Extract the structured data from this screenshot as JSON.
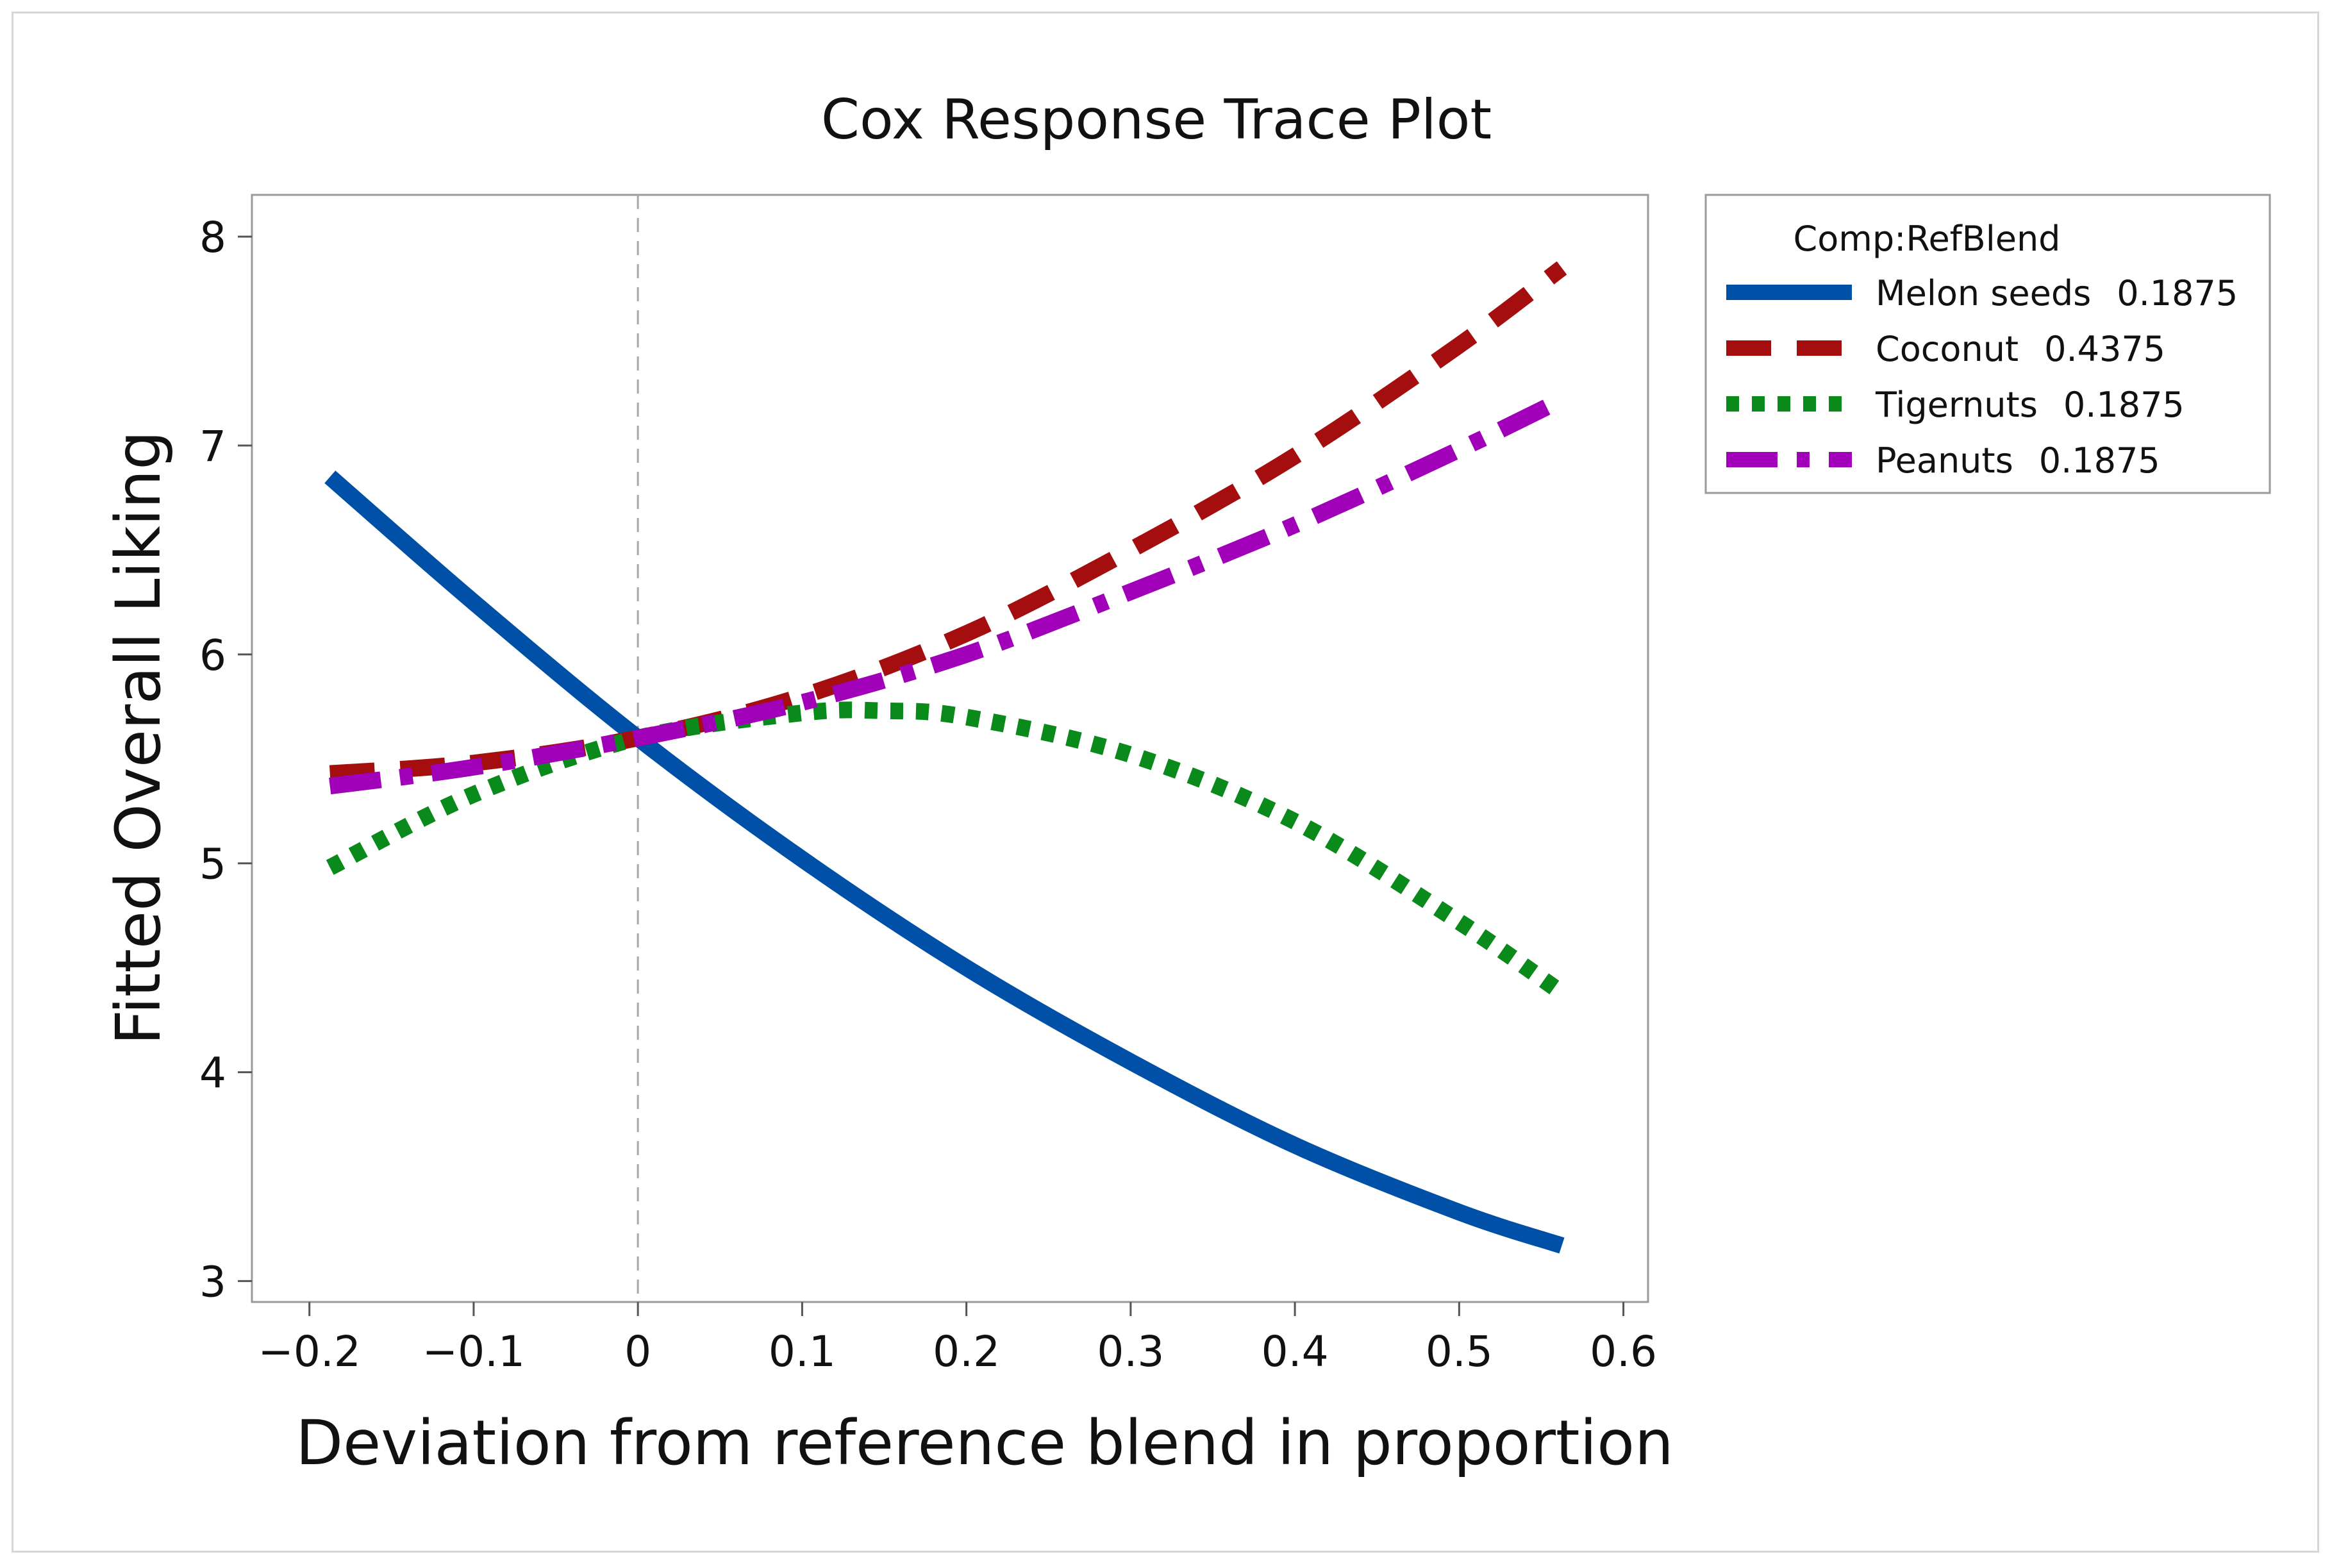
{
  "chart_data": {
    "type": "line",
    "title": "Cox Response Trace Plot",
    "xlabel": "Deviation from reference blend in proportion",
    "ylabel": "Fitted Overall Liking",
    "xlim": [
      -0.235,
      0.615
    ],
    "ylim": [
      2.9,
      8.2
    ],
    "x_ticks": [
      -0.2,
      -0.1,
      0,
      0.1,
      0.2,
      0.3,
      0.4,
      0.5,
      0.6
    ],
    "x_tick_labels": [
      "−0.2",
      "−0.1",
      "0",
      "0.1",
      "0.2",
      "0.3",
      "0.4",
      "0.5",
      "0.6"
    ],
    "y_ticks": [
      3,
      4,
      5,
      6,
      7,
      8
    ],
    "y_tick_labels": [
      "3",
      "4",
      "5",
      "6",
      "7",
      "8"
    ],
    "reference_line_x": 0,
    "legend": {
      "title": "Comp:RefBlend",
      "position": "outside-right-top"
    },
    "series": [
      {
        "name": "Melon seeds",
        "ref_value": "0.1875",
        "color": "#0050a8",
        "style": "solid",
        "x": [
          -0.1875,
          -0.1,
          0,
          0.1,
          0.2,
          0.3,
          0.4,
          0.5,
          0.5625
        ],
        "y": [
          6.85,
          6.25,
          5.6,
          5.02,
          4.5,
          4.05,
          3.65,
          3.33,
          3.17
        ]
      },
      {
        "name": "Coconut",
        "ref_value": "0.4375",
        "color": "#a50e0e",
        "style": "dash",
        "x": [
          -0.1875,
          -0.1,
          0,
          0.1,
          0.2,
          0.3,
          0.4,
          0.5,
          0.5625
        ],
        "y": [
          5.43,
          5.48,
          5.6,
          5.8,
          6.1,
          6.5,
          6.95,
          7.48,
          7.85
        ]
      },
      {
        "name": "Tigernuts",
        "ref_value": "0.1875",
        "color": "#0a8a1a",
        "style": "dot",
        "x": [
          -0.1875,
          -0.1,
          0,
          0.1,
          0.15,
          0.2,
          0.3,
          0.4,
          0.5,
          0.5625
        ],
        "y": [
          4.98,
          5.33,
          5.6,
          5.72,
          5.73,
          5.7,
          5.52,
          5.2,
          4.72,
          4.38
        ]
      },
      {
        "name": "Peanuts",
        "ref_value": "0.1875",
        "color": "#a000b8",
        "style": "dashdot",
        "x": [
          -0.1875,
          -0.1,
          0,
          0.1,
          0.2,
          0.3,
          0.4,
          0.5,
          0.5625
        ],
        "y": [
          5.37,
          5.46,
          5.6,
          5.77,
          6.0,
          6.3,
          6.62,
          6.98,
          7.22
        ]
      }
    ]
  }
}
